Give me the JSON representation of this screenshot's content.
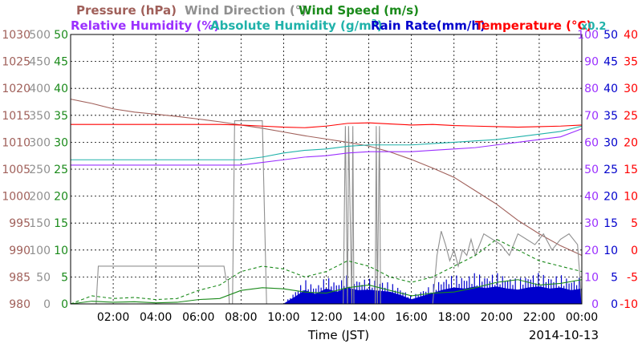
{
  "chart_data": {
    "type": "line",
    "legend": [
      {
        "text": "Pressure (hPa)",
        "color": "#a0605a"
      },
      {
        "text": "Wind Direction (°)",
        "color": "#909090"
      },
      {
        "text": "Wind Speed (m/s)",
        "color": "#1a8a1a"
      },
      {
        "text": "Relative Humidity (%)",
        "color": "#9b30ff"
      },
      {
        "text": "Absolute Humidity (g/m",
        "sup": "3",
        "close": ")",
        "color": "#20b2aa"
      },
      {
        "text": "Rain Rate(mm/h)",
        "color": "#0000cc"
      },
      {
        "text": "Temperature (°C)",
        "color": "#ff0000"
      }
    ],
    "scale_note": {
      "text": "x0.2",
      "color": "#20b2aa"
    },
    "xlabel": "Time (JST)",
    "date_label": "2014-10-13",
    "x_ticks": [
      "02:00",
      "04:00",
      "06:00",
      "08:00",
      "10:00",
      "12:00",
      "14:00",
      "16:00",
      "18:00",
      "20:00",
      "22:00",
      "00:00"
    ],
    "x_range_hours": [
      0,
      24
    ],
    "left_axes": [
      {
        "name": "Pressure (hPa)",
        "color": "#a0605a",
        "min": 980,
        "max": 1030,
        "ticks": [
          980,
          985,
          990,
          995,
          1000,
          1005,
          1010,
          1015,
          1020,
          1025,
          1030
        ]
      },
      {
        "name": "Wind Direction (°)",
        "color": "#909090",
        "min": 0,
        "max": 500,
        "ticks": [
          0,
          50,
          100,
          150,
          200,
          250,
          300,
          350,
          400,
          450,
          500
        ]
      },
      {
        "name": "Wind Speed (m/s)",
        "color": "#1a8a1a",
        "min": 0,
        "max": 50,
        "ticks": [
          0,
          5,
          10,
          15,
          20,
          25,
          30,
          35,
          40,
          45,
          50
        ]
      }
    ],
    "right_axes": [
      {
        "name": "Relative Humidity (%)",
        "color": "#9b30ff",
        "min": 0,
        "max": 100,
        "ticks": [
          0,
          10,
          20,
          30,
          40,
          50,
          60,
          70,
          80,
          90,
          100
        ]
      },
      {
        "name": "Rain Rate(mm/h)",
        "color": "#0000cc",
        "min": 0,
        "max": 50,
        "ticks": [
          0,
          5,
          10,
          15,
          20,
          25,
          30,
          35,
          40,
          45,
          50
        ]
      },
      {
        "name": "Temperature (°C)",
        "color": "#ff0000",
        "min": -10,
        "max": 40,
        "ticks": [
          -10,
          -5,
          0,
          5,
          10,
          15,
          20,
          25,
          30,
          35,
          40
        ]
      }
    ],
    "grid": true,
    "series": [
      {
        "name": "Pressure (hPa)",
        "axis": "pressure",
        "color": "#a0605a",
        "x": [
          0,
          1,
          2,
          3,
          4,
          5,
          6,
          7,
          8,
          9,
          10,
          11,
          12,
          13,
          14,
          15,
          16,
          17,
          18,
          19,
          20,
          21,
          22,
          23,
          24
        ],
        "y": [
          1018,
          1017.2,
          1016.2,
          1015.6,
          1015.2,
          1014.8,
          1014.3,
          1013.8,
          1013.2,
          1012.6,
          1011.9,
          1011.2,
          1010.6,
          1010,
          1009.3,
          1008.2,
          1006.8,
          1005.2,
          1003.5,
          1001,
          998.5,
          995.5,
          993,
          990.8,
          989
        ]
      },
      {
        "name": "Wind Direction (°)",
        "axis": "winddir",
        "color": "#909090",
        "x": [
          0,
          1.2,
          1.3,
          7.2,
          7.3,
          7.4,
          7.45,
          7.6,
          7.7,
          9,
          9.2,
          12.7,
          12.8,
          12.9,
          13,
          13.05,
          13.2,
          13.25,
          13.3,
          14.3,
          14.35,
          14.4,
          14.5,
          14.55,
          14.6,
          17,
          17.2,
          17.4,
          17.6,
          17.8,
          18,
          18.2,
          18.4,
          18.6,
          18.8,
          19,
          19.4,
          19.8,
          20.2,
          20.6,
          21,
          21.4,
          21.8,
          22.2,
          22.6,
          23,
          23.4,
          23.8,
          24
        ],
        "y": [
          0,
          0,
          70,
          70,
          45,
          45,
          0,
          0,
          340,
          340,
          0,
          0,
          0,
          330,
          0,
          330,
          0,
          330,
          0,
          0,
          330,
          0,
          330,
          0,
          0,
          0,
          90,
          135,
          110,
          80,
          100,
          70,
          100,
          90,
          120,
          90,
          130,
          120,
          110,
          90,
          130,
          120,
          110,
          130,
          100,
          120,
          130,
          110,
          0
        ]
      },
      {
        "name": "Wind Speed (m/s)",
        "axis": "windspeed",
        "color": "#1a8a1a",
        "x": [
          0,
          1,
          2,
          3,
          4,
          5,
          6,
          7,
          8,
          9,
          10,
          11,
          12,
          13,
          14,
          15,
          16,
          17,
          18,
          19,
          20,
          21,
          22,
          23,
          24
        ],
        "y": [
          0,
          0.5,
          0.3,
          0.4,
          0.2,
          0.3,
          0.8,
          1.0,
          2.5,
          3.0,
          2.8,
          2.2,
          2.0,
          3.0,
          3.5,
          2.5,
          1.5,
          2.0,
          2.2,
          3.0,
          4.0,
          4.5,
          3.5,
          3.8,
          4.5
        ]
      },
      {
        "name": "Wind Gust (m/s)",
        "axis": "windspeed",
        "color": "#1a8a1a",
        "dashed": true,
        "x": [
          0,
          1,
          2,
          3,
          4,
          5,
          6,
          7,
          8,
          9,
          10,
          11,
          12,
          13,
          14,
          15,
          16,
          17,
          18,
          19,
          20,
          21,
          22,
          23,
          24
        ],
        "y": [
          0,
          1.5,
          1,
          1.2,
          0.8,
          1,
          2.5,
          3.5,
          6,
          7,
          6.5,
          5,
          6,
          8,
          7,
          5,
          4,
          5,
          7,
          9,
          12,
          10,
          8,
          7,
          6
        ]
      },
      {
        "name": "Relative Humidity (%)",
        "axis": "rh",
        "color": "#9b30ff",
        "x": [
          0,
          1,
          2,
          3,
          4,
          5,
          6,
          7,
          8,
          9,
          10,
          11,
          12,
          13,
          14,
          15,
          16,
          17,
          18,
          19,
          20,
          21,
          22,
          23,
          24
        ],
        "y": [
          51.5,
          51.5,
          51.5,
          51.5,
          51.5,
          51.5,
          51.5,
          51.5,
          51.5,
          52.5,
          53.5,
          54.5,
          55,
          56,
          56.5,
          56.5,
          56.5,
          57,
          57.5,
          58,
          59,
          60,
          61,
          62,
          65
        ]
      },
      {
        "name": "Absolute Humidity (g/m3) x0.2",
        "axis": "rh",
        "color": "#20b2aa",
        "x": [
          0,
          1,
          2,
          3,
          4,
          5,
          6,
          7,
          8,
          9,
          10,
          11,
          12,
          13,
          14,
          15,
          16,
          17,
          18,
          19,
          20,
          21,
          22,
          23,
          24
        ],
        "y": [
          53.5,
          53.5,
          53.5,
          53.5,
          53.5,
          53.5,
          53.5,
          53.5,
          53.5,
          54.5,
          56,
          57,
          57.5,
          58.5,
          59,
          59,
          59,
          59.5,
          60,
          60.5,
          61,
          62,
          63,
          64,
          66
        ]
      },
      {
        "name": "Temperature (°C)",
        "axis": "temp",
        "color": "#ff0000",
        "x": [
          0,
          1,
          2,
          3,
          4,
          5,
          6,
          7,
          8,
          9,
          10,
          11,
          12,
          13,
          14,
          15,
          16,
          17,
          18,
          19,
          20,
          21,
          22,
          23,
          24
        ],
        "y": [
          23.3,
          23.3,
          23.3,
          23.3,
          23.3,
          23.3,
          23.3,
          23.3,
          23.2,
          23,
          22.8,
          22.7,
          23,
          23.5,
          23.6,
          23.4,
          23.2,
          23.3,
          23.1,
          23,
          22.9,
          22.8,
          22.9,
          23,
          23.2
        ]
      },
      {
        "name": "Rain Rate(mm/h)",
        "axis": "rain",
        "color": "#0000cc",
        "type": "area",
        "x": [
          0,
          10,
          10.5,
          11,
          11.5,
          12,
          12.5,
          13,
          13.5,
          14,
          14.5,
          15,
          15.5,
          16,
          16.5,
          17,
          17.5,
          18,
          18.5,
          19,
          19.5,
          20,
          20.5,
          21,
          21.5,
          22,
          22.5,
          23,
          23.5,
          24
        ],
        "y": [
          0,
          0,
          1.2,
          2.5,
          1.8,
          2.8,
          2.2,
          3,
          2.5,
          2.6,
          2.4,
          2.2,
          1.6,
          0.8,
          1.4,
          2,
          2.6,
          3,
          2.8,
          3.2,
          2.9,
          3.2,
          2.8,
          2.6,
          3.0,
          3.2,
          2.8,
          3,
          2.5,
          2.8
        ]
      }
    ]
  }
}
